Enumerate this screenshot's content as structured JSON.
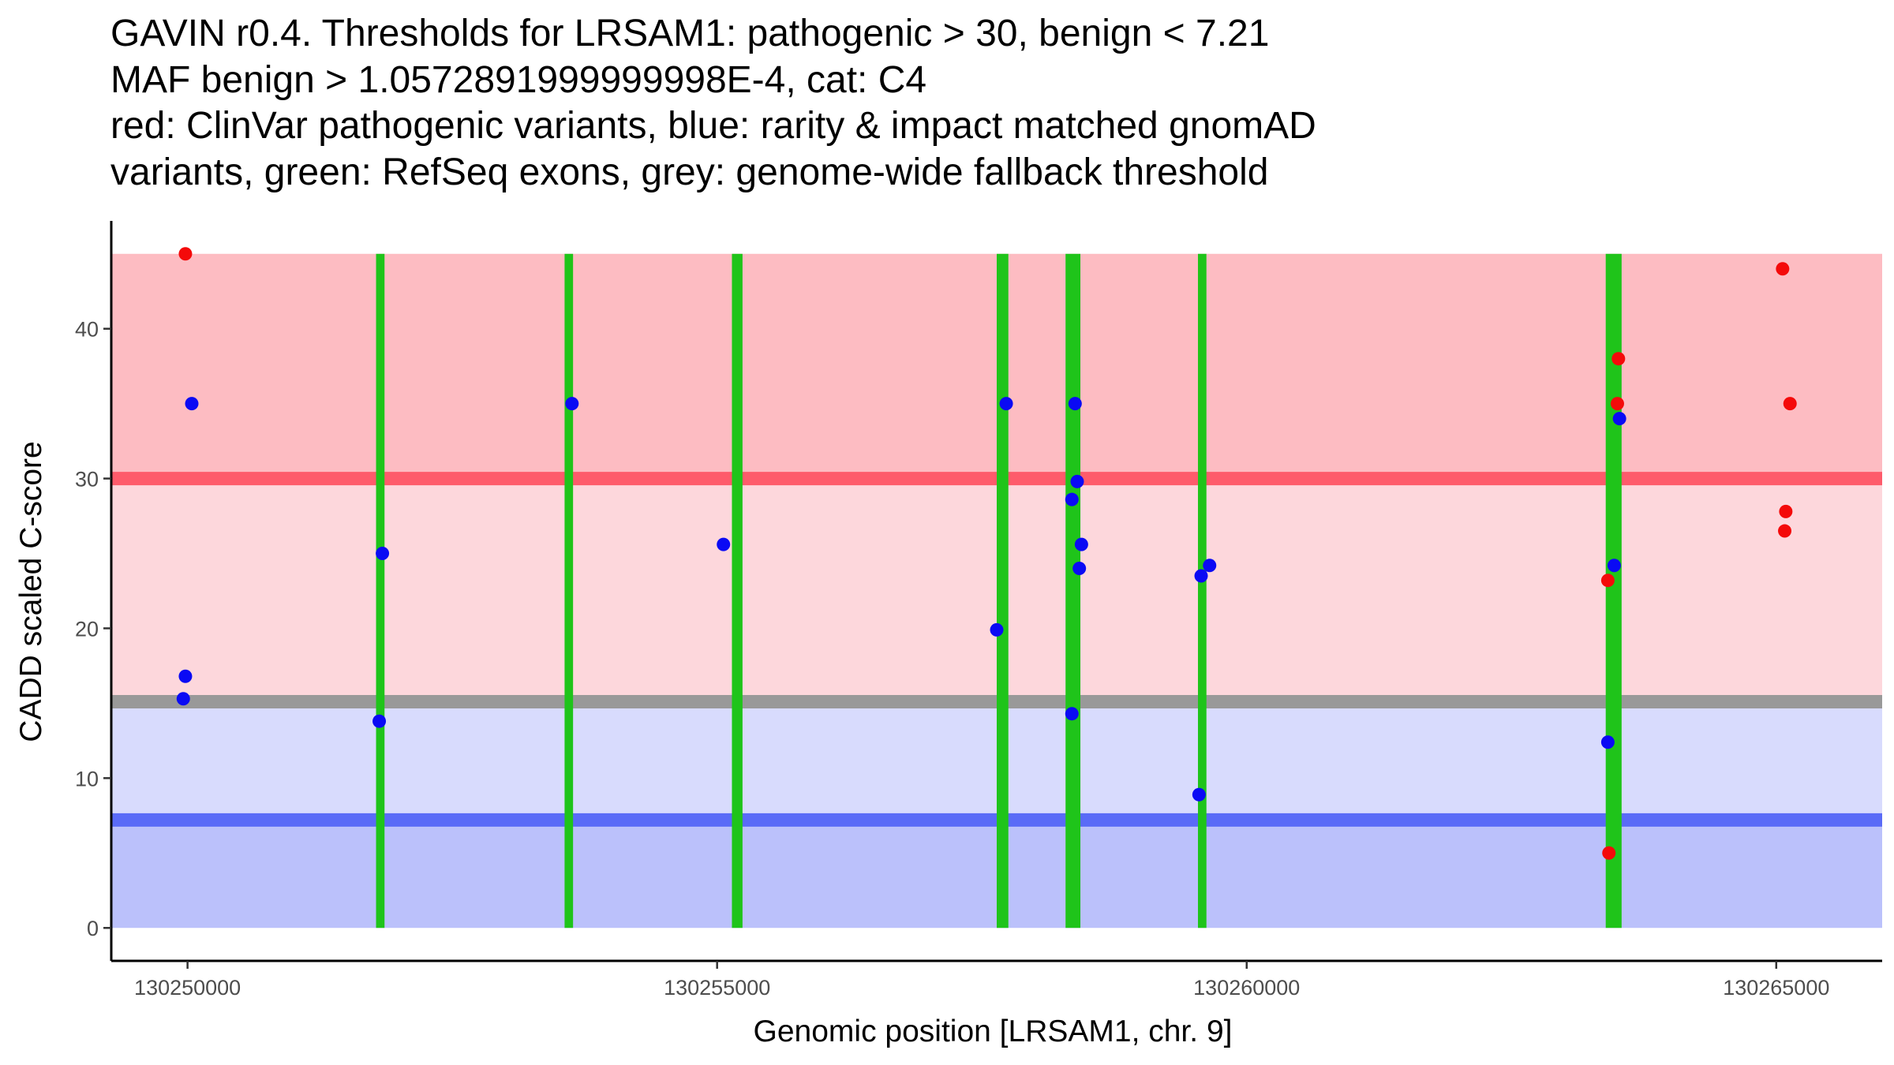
{
  "chart_data": {
    "type": "scatter",
    "title_lines": [
      "GAVIN r0.4. Thresholds for LRSAM1: pathogenic > 30, benign < 7.21",
      "MAF benign > 1.0572891999999998E-4, cat: C4",
      "red: ClinVar pathogenic variants, blue: rarity & impact matched gnomAD",
      "variants, green: RefSeq exons, grey: genome-wide fallback threshold"
    ],
    "xlabel": "Genomic position [LRSAM1, chr. 9]",
    "ylabel": "CADD scaled C-score",
    "xlim": [
      130249280,
      130266000
    ],
    "ylim": [
      -2.2,
      47.2
    ],
    "x_ticks": [
      {
        "value": 130250000,
        "label": "130250000"
      },
      {
        "value": 130255000,
        "label": "130255000"
      },
      {
        "value": 130260000,
        "label": "130260000"
      },
      {
        "value": 130265000,
        "label": "130265000"
      }
    ],
    "y_ticks": [
      {
        "value": 0,
        "label": "0"
      },
      {
        "value": 10,
        "label": "10"
      },
      {
        "value": 20,
        "label": "20"
      },
      {
        "value": 30,
        "label": "30"
      },
      {
        "value": 40,
        "label": "40"
      }
    ],
    "bands": [
      {
        "name": "pathogenic-region",
        "y0": 30,
        "y1": 45,
        "color": "#fdbcc2"
      },
      {
        "name": "intermediate-region-upper",
        "y0": 15.1,
        "y1": 30,
        "color": "#fdd7dc"
      },
      {
        "name": "intermediate-region-lower",
        "y0": 7.21,
        "y1": 15.1,
        "color": "#d8dbfd"
      },
      {
        "name": "benign-region",
        "y0": 0,
        "y1": 7.21,
        "color": "#bbc1fb"
      }
    ],
    "threshold_lines": [
      {
        "name": "pathogenic-threshold",
        "y": 30,
        "color": "#fe5b6b"
      },
      {
        "name": "fallback-threshold",
        "y": 15.1,
        "color": "#999999"
      },
      {
        "name": "benign-threshold",
        "y": 7.21,
        "color": "#5a6bf7"
      }
    ],
    "exons": [
      {
        "start": 130251780,
        "end": 130251860
      },
      {
        "start": 130253560,
        "end": 130253640
      },
      {
        "start": 130255140,
        "end": 130255240
      },
      {
        "start": 130257640,
        "end": 130257750
      },
      {
        "start": 130258290,
        "end": 130258430
      },
      {
        "start": 130259540,
        "end": 130259620
      },
      {
        "start": 130263390,
        "end": 130263540
      }
    ],
    "exon_color": "#1fc41a",
    "series": [
      {
        "name": "ClinVar pathogenic variants",
        "color": "#f40a0a",
        "points": [
          {
            "x": 130249980,
            "y": 45.0
          },
          {
            "x": 130263410,
            "y": 23.2
          },
          {
            "x": 130263420,
            "y": 5.0
          },
          {
            "x": 130263510,
            "y": 38.0
          },
          {
            "x": 130263500,
            "y": 35.0
          },
          {
            "x": 130265060,
            "y": 44.0
          },
          {
            "x": 130265130,
            "y": 35.0
          },
          {
            "x": 130265090,
            "y": 27.8
          },
          {
            "x": 130265080,
            "y": 26.5
          }
        ]
      },
      {
        "name": "rarity & impact matched gnomAD variants",
        "color": "#0a0af4",
        "points": [
          {
            "x": 130250040,
            "y": 35.0
          },
          {
            "x": 130249980,
            "y": 16.8
          },
          {
            "x": 130249960,
            "y": 15.3
          },
          {
            "x": 130251840,
            "y": 25.0
          },
          {
            "x": 130251810,
            "y": 13.8
          },
          {
            "x": 130253630,
            "y": 35.0
          },
          {
            "x": 130255060,
            "y": 25.6
          },
          {
            "x": 130257730,
            "y": 35.0
          },
          {
            "x": 130257640,
            "y": 19.9
          },
          {
            "x": 130258380,
            "y": 35.0
          },
          {
            "x": 130258400,
            "y": 29.8
          },
          {
            "x": 130258350,
            "y": 28.6
          },
          {
            "x": 130258440,
            "y": 25.6
          },
          {
            "x": 130258420,
            "y": 24.0
          },
          {
            "x": 130258350,
            "y": 14.3
          },
          {
            "x": 130259570,
            "y": 23.5
          },
          {
            "x": 130259650,
            "y": 24.2
          },
          {
            "x": 130259550,
            "y": 8.9
          },
          {
            "x": 130263470,
            "y": 24.2
          },
          {
            "x": 130263520,
            "y": 34.0
          },
          {
            "x": 130263410,
            "y": 12.4
          }
        ]
      }
    ]
  }
}
